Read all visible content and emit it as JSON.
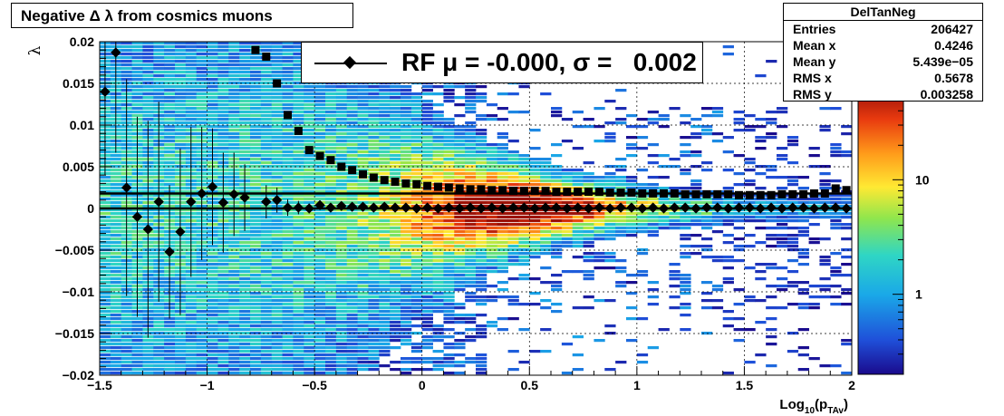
{
  "title": "Negative Δ λ from cosmics muons",
  "stats": {
    "name": "DelTanNeg",
    "rows": [
      {
        "label": "Entries",
        "value": "206427"
      },
      {
        "label": "Mean x",
        "value": "0.4246"
      },
      {
        "label": "Mean y",
        "value": "5.439e−05"
      },
      {
        "label": "RMS x",
        "value": "0.5678"
      },
      {
        "label": "RMS y",
        "value": "0.003258"
      }
    ]
  },
  "legend": {
    "label": "RF μ = -0.000, σ =   0.002"
  },
  "colors": {
    "mean_marker": "#000000",
    "sigma_marker": "#000000",
    "fit_line": "#000000"
  },
  "chart_data": {
    "type": "heatmap",
    "title": "Negative Δ λ from cosmics muons",
    "xlabel": "Log",
    "xlabel_sub1": "10",
    "xlabel_mid": "(p",
    "xlabel_sub2": "TAv",
    "xlabel_end": ")",
    "ylabel": "λ",
    "xlim": [
      -1.5,
      2.0
    ],
    "ylim": [
      -0.02,
      0.02
    ],
    "x_ticks": [
      -1.5,
      -1,
      -0.5,
      0,
      0.5,
      1,
      1.5,
      2
    ],
    "x_tick_labels": [
      "−1.5",
      "−1",
      "−0.5",
      "0",
      "0.5",
      "1",
      "1.5",
      "2"
    ],
    "y_ticks": [
      -0.02,
      -0.015,
      -0.01,
      -0.005,
      0,
      0.005,
      0.01,
      0.015,
      0.02
    ],
    "y_tick_labels": [
      "−0.02",
      "−0.015",
      "−0.01",
      "−0.005",
      "0",
      "0.005",
      "0.01",
      "0.015",
      "0.02"
    ],
    "grid": true,
    "log_z": true,
    "colorbar_labels": [
      "1",
      "10"
    ],
    "colorbar_values": [
      1,
      10
    ],
    "zlim": [
      0.2,
      60
    ],
    "fit_lines": [
      {
        "name": "sigma-fit",
        "y": 0.0018
      },
      {
        "name": "mean-fit",
        "y": 0.0
      }
    ],
    "series": [
      {
        "name": "mean",
        "marker": "diamond",
        "x": [
          -1.475,
          -1.425,
          -1.375,
          -1.325,
          -1.275,
          -1.225,
          -1.175,
          -1.125,
          -1.075,
          -1.025,
          -0.975,
          -0.925,
          -0.875,
          -0.825,
          -0.725,
          -0.675,
          -0.625,
          -0.575,
          -0.525,
          -0.475,
          -0.425,
          -0.375,
          -0.325,
          -0.275,
          -0.225,
          -0.175,
          -0.125,
          -0.075,
          -0.025,
          0.025,
          0.075,
          0.125,
          0.175,
          0.225,
          0.275,
          0.325,
          0.375,
          0.425,
          0.475,
          0.525,
          0.575,
          0.625,
          0.675,
          0.725,
          0.775,
          0.825,
          0.875,
          0.925,
          0.975,
          1.025,
          1.075,
          1.125,
          1.175,
          1.225,
          1.275,
          1.325,
          1.375,
          1.425,
          1.475,
          1.525,
          1.575,
          1.625,
          1.675,
          1.725,
          1.775,
          1.825,
          1.875,
          1.925,
          1.975
        ],
        "y": [
          0.014,
          0.0187,
          0.0025,
          -0.001,
          -0.0025,
          0.0008,
          -0.0052,
          -0.0028,
          0.0008,
          0.0018,
          0.0026,
          0.0007,
          0.0017,
          0.0013,
          0.0008,
          0.001,
          0.0001,
          0.0001,
          0.0,
          0.0004,
          0.0001,
          0.0003,
          0.0002,
          0.0002,
          0.0001,
          0.0002,
          0.0001,
          0.0001,
          0.0,
          0.0001,
          0.0,
          0.0001,
          0.0,
          0.0001,
          0.0,
          0.0001,
          0.0,
          0.0001,
          0.0001,
          0.0,
          0.0001,
          0.0001,
          0.0,
          0.0001,
          0.0,
          0.0001,
          0.0,
          0.0001,
          0.0001,
          0.0,
          0.0001,
          0.0,
          0.0001,
          0.0001,
          0.0,
          0.0001,
          0.0001,
          0.0,
          0.0001,
          0.0001,
          0.0,
          0.0001,
          0.0,
          0.0001,
          0.0001,
          0.0,
          0.0001,
          0.0001,
          0.0
        ],
        "yerr": [
          0.01,
          0.012,
          0.013,
          0.012,
          0.013,
          0.012,
          0.008,
          0.01,
          0.009,
          0.008,
          0.007,
          0.006,
          0.005,
          0.004,
          0.002,
          0.0015,
          0.001,
          0.0008,
          0.0006,
          0.0005,
          0.0004,
          0.0003,
          0.0003,
          0.0002,
          0.0002,
          0.0002,
          0.0002,
          0.0001,
          0.0001,
          0.0001,
          0.0001,
          0.0001,
          0.0001,
          0.0001,
          0.0001,
          0.0001,
          0.0001,
          0.0001,
          0.0001,
          0.0001,
          0.0001,
          0.0001,
          0.0001,
          0.0001,
          0.0001,
          0.0001,
          0.0001,
          0.0001,
          0.0001,
          0.0001,
          0.0001,
          0.0001,
          0.0001,
          0.0001,
          0.0001,
          0.0001,
          0.0001,
          0.0001,
          0.0001,
          0.0001,
          0.0001,
          0.0001,
          0.0001,
          0.0001,
          0.0001,
          0.0001,
          0.0001,
          0.0001,
          0.0001
        ]
      },
      {
        "name": "sigma",
        "marker": "square",
        "x": [
          -0.775,
          -0.725,
          -0.675,
          -0.625,
          -0.575,
          -0.525,
          -0.475,
          -0.425,
          -0.375,
          -0.325,
          -0.275,
          -0.225,
          -0.175,
          -0.125,
          -0.075,
          -0.025,
          0.025,
          0.075,
          0.125,
          0.175,
          0.225,
          0.275,
          0.325,
          0.375,
          0.425,
          0.475,
          0.525,
          0.575,
          0.625,
          0.675,
          0.725,
          0.775,
          0.825,
          0.875,
          0.925,
          0.975,
          1.025,
          1.075,
          1.125,
          1.175,
          1.225,
          1.275,
          1.325,
          1.375,
          1.425,
          1.475,
          1.525,
          1.575,
          1.625,
          1.675,
          1.725,
          1.775,
          1.825,
          1.875,
          1.925,
          1.975
        ],
        "y": [
          0.019,
          0.0182,
          0.015,
          0.0112,
          0.0093,
          0.007,
          0.0063,
          0.0058,
          0.005,
          0.0046,
          0.0041,
          0.0037,
          0.0034,
          0.0032,
          0.003,
          0.0029,
          0.0027,
          0.0026,
          0.0025,
          0.0024,
          0.0023,
          0.0023,
          0.0022,
          0.0022,
          0.0021,
          0.0021,
          0.0021,
          0.0021,
          0.002,
          0.002,
          0.002,
          0.002,
          0.002,
          0.0019,
          0.0019,
          0.0019,
          0.0018,
          0.0018,
          0.0018,
          0.0018,
          0.0017,
          0.0017,
          0.0017,
          0.0017,
          0.0017,
          0.0016,
          0.0016,
          0.0016,
          0.0016,
          0.0017,
          0.0017,
          0.0017,
          0.0018,
          0.0018,
          0.0024,
          0.0022
        ]
      }
    ]
  }
}
